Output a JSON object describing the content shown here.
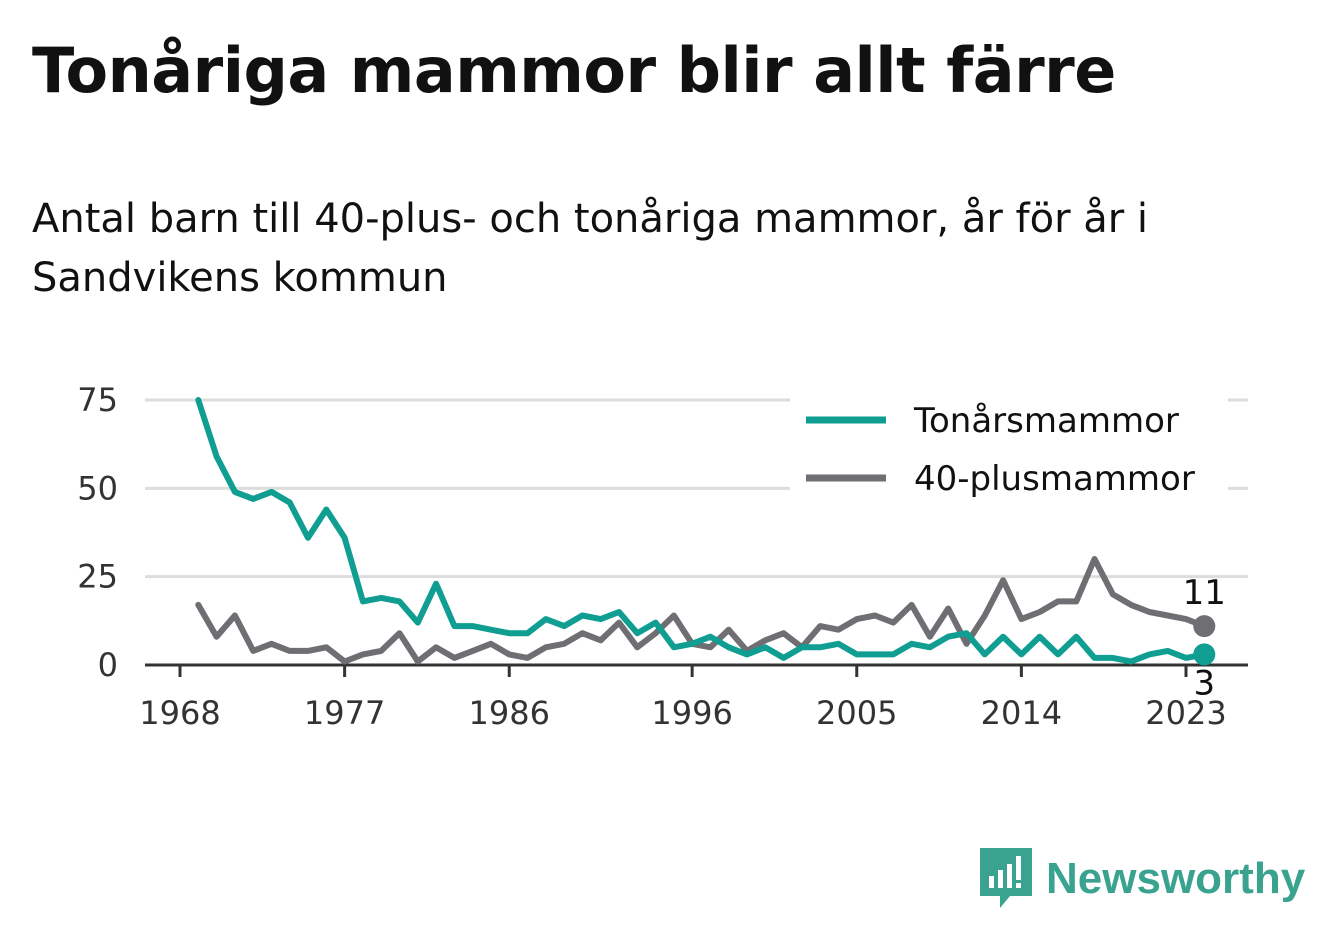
{
  "title": "Tonåriga mammor blir allt färre",
  "subtitle": "Antal barn till 40-plus- och tonåriga mammor, år för år i Sandvikens kommun",
  "brand": {
    "name": "Newsworthy",
    "icon": "newsworthy-logo-icon",
    "color": "#3aa38f"
  },
  "chart_data": {
    "type": "line",
    "x": [
      1969,
      1970,
      1971,
      1972,
      1973,
      1974,
      1975,
      1976,
      1977,
      1978,
      1979,
      1980,
      1981,
      1982,
      1983,
      1984,
      1985,
      1986,
      1987,
      1988,
      1989,
      1990,
      1991,
      1992,
      1993,
      1994,
      1995,
      1996,
      1997,
      1998,
      1999,
      2000,
      2001,
      2002,
      2003,
      2004,
      2005,
      2006,
      2007,
      2008,
      2009,
      2010,
      2011,
      2012,
      2013,
      2014,
      2015,
      2016,
      2017,
      2018,
      2019,
      2020,
      2021,
      2022,
      2023,
      2024
    ],
    "series": [
      {
        "name": "Tonårsmammor",
        "color": "#0f9e91",
        "values": [
          75,
          59,
          49,
          47,
          49,
          46,
          36,
          44,
          36,
          18,
          19,
          18,
          12,
          23,
          11,
          11,
          10,
          9,
          9,
          13,
          11,
          14,
          13,
          15,
          9,
          12,
          5,
          6,
          8,
          5,
          3,
          5,
          2,
          5,
          5,
          6,
          3,
          3,
          3,
          6,
          5,
          8,
          9,
          3,
          8,
          3,
          8,
          3,
          8,
          2,
          2,
          1,
          3,
          4,
          2,
          3
        ],
        "end_label": "3"
      },
      {
        "name": "40-plusmammor",
        "color": "#6e6e73",
        "values": [
          17,
          8,
          14,
          4,
          6,
          4,
          4,
          5,
          1,
          3,
          4,
          9,
          1,
          5,
          2,
          4,
          6,
          3,
          2,
          5,
          6,
          9,
          7,
          12,
          5,
          9,
          14,
          6,
          5,
          10,
          4,
          7,
          9,
          5,
          11,
          10,
          13,
          14,
          12,
          17,
          8,
          16,
          6,
          14,
          24,
          13,
          15,
          18,
          18,
          30,
          20,
          17,
          15,
          14,
          13,
          11
        ],
        "end_label": "11"
      }
    ],
    "x_ticks": [
      "1968",
      "1977",
      "1986",
      "1996",
      "2005",
      "2014",
      "2023"
    ],
    "y_ticks": [
      "0",
      "25",
      "50",
      "75"
    ],
    "xlim": [
      1968,
      2025
    ],
    "ylim": [
      0,
      75
    ],
    "grid": true,
    "legend_position": "top-right"
  }
}
